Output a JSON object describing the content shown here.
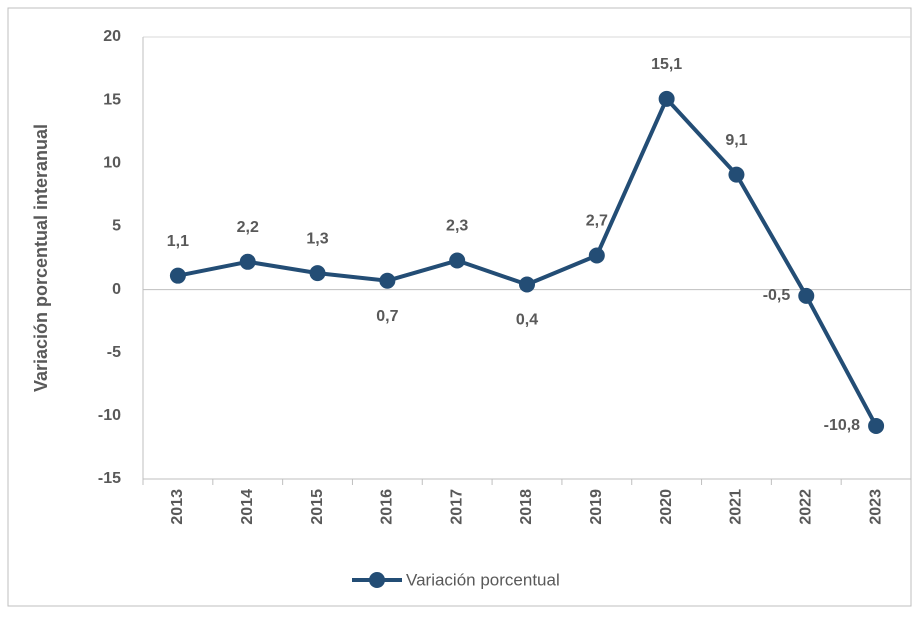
{
  "chart_data": {
    "type": "line",
    "y_label": "Variación porcentual interanual",
    "categories": [
      "2013",
      "2014",
      "2015",
      "2016",
      "2017",
      "2018",
      "2019",
      "2020",
      "2021",
      "2022",
      "2023"
    ],
    "series": [
      {
        "name": "Variación porcentual",
        "color": "#234d75",
        "values": [
          1.1,
          2.2,
          1.3,
          0.7,
          2.3,
          0.4,
          2.7,
          15.1,
          9.1,
          -0.5,
          -10.8
        ],
        "value_labels": [
          "1,1",
          "2,2",
          "1,3",
          "0,7",
          "2,3",
          "0,4",
          "2,7",
          "15,1",
          "9,1",
          "-0,5",
          "-10,8"
        ]
      }
    ],
    "ylim": [
      -15,
      20
    ],
    "yticks": [
      -15,
      -10,
      -5,
      0,
      5,
      10,
      15,
      20
    ],
    "grid": false,
    "legend": "bottom"
  }
}
